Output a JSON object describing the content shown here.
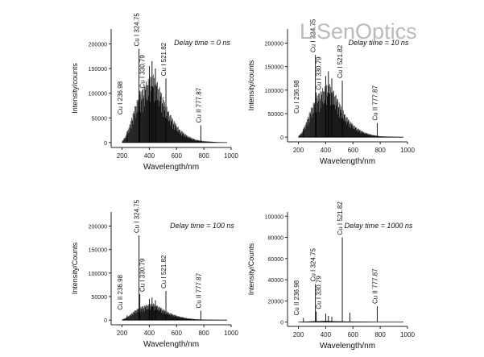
{
  "watermark": {
    "text": "LiSenOptics",
    "color": "#aaaaaa"
  },
  "chart_data": [
    {
      "type": "line",
      "delay_label": "Delay time = 0 ns",
      "xlabel": "Wavelength/nm",
      "ylabel": "Intensity/counts",
      "xlim": [
        120,
        1000
      ],
      "ylim": [
        -10000,
        230000
      ],
      "xticks": [
        200,
        400,
        600,
        800,
        1000
      ],
      "xtick_labels": [
        "200",
        "400",
        "600",
        "800",
        "1000"
      ],
      "yticks": [
        0,
        50000,
        100000,
        150000,
        200000
      ],
      "ytick_labels": [
        "0",
        "50000",
        "100000",
        "150000",
        "200000"
      ],
      "envelope": [
        [
          200,
          2000
        ],
        [
          230,
          15000
        ],
        [
          260,
          40000
        ],
        [
          290,
          70000
        ],
        [
          320,
          95000
        ],
        [
          350,
          110000
        ],
        [
          380,
          125000
        ],
        [
          410,
          135000
        ],
        [
          430,
          140000
        ],
        [
          450,
          130000
        ],
        [
          480,
          110000
        ],
        [
          510,
          85000
        ],
        [
          540,
          65000
        ],
        [
          580,
          45000
        ],
        [
          620,
          28000
        ],
        [
          680,
          14000
        ],
        [
          740,
          6000
        ],
        [
          800,
          3000
        ],
        [
          900,
          1000
        ],
        [
          970,
          500
        ]
      ],
      "peaks": [
        [
          236.98,
          22000
        ],
        [
          324.75,
          190000
        ],
        [
          330.79,
          105000
        ],
        [
          400,
          155000
        ],
        [
          420,
          165000
        ],
        [
          445,
          150000
        ],
        [
          521.82,
          130000
        ],
        [
          777.87,
          35000
        ]
      ],
      "annotations": [
        {
          "text": "Cu I 236.98",
          "x": 236.98
        },
        {
          "text": "Cu I 324.75",
          "x": 324.75
        },
        {
          "text": "Cu I 330.79",
          "x": 330.79
        },
        {
          "text": "Cu I 521.82",
          "x": 521.82
        },
        {
          "text": "Cu II 777.87",
          "x": 777.87
        }
      ]
    },
    {
      "type": "line",
      "delay_label": "Delay time = 10 ns",
      "xlabel": "Wavelength/nm",
      "ylabel": "Intensity/counts",
      "xlim": [
        120,
        1000
      ],
      "ylim": [
        -10000,
        230000
      ],
      "xticks": [
        200,
        400,
        600,
        800,
        1000
      ],
      "xtick_labels": [
        "200",
        "400",
        "600",
        "800",
        "1000"
      ],
      "yticks": [
        0,
        50000,
        100000,
        150000,
        200000
      ],
      "ytick_labels": [
        "0",
        "50000",
        "100000",
        "150000",
        "200000"
      ],
      "envelope": [
        [
          200,
          2000
        ],
        [
          230,
          12000
        ],
        [
          260,
          35000
        ],
        [
          290,
          60000
        ],
        [
          320,
          80000
        ],
        [
          350,
          95000
        ],
        [
          380,
          105000
        ],
        [
          410,
          112000
        ],
        [
          430,
          115000
        ],
        [
          450,
          105000
        ],
        [
          480,
          88000
        ],
        [
          510,
          68000
        ],
        [
          540,
          50000
        ],
        [
          580,
          34000
        ],
        [
          620,
          22000
        ],
        [
          680,
          11000
        ],
        [
          740,
          5000
        ],
        [
          800,
          2000
        ],
        [
          900,
          800
        ],
        [
          970,
          300
        ]
      ],
      "peaks": [
        [
          236.98,
          18000
        ],
        [
          324.75,
          175000
        ],
        [
          330.79,
          95000
        ],
        [
          400,
          130000
        ],
        [
          420,
          140000
        ],
        [
          445,
          125000
        ],
        [
          521.82,
          120000
        ],
        [
          777.87,
          30000
        ]
      ],
      "annotations": [
        {
          "text": "Cu I 236.98",
          "x": 236.98
        },
        {
          "text": "Cu I 324.75",
          "x": 324.75
        },
        {
          "text": "Cu I 330.79",
          "x": 330.79
        },
        {
          "text": "Cu I 521.82",
          "x": 521.82
        },
        {
          "text": "Cu II 777.87",
          "x": 777.87
        }
      ]
    },
    {
      "type": "line",
      "delay_label": "Delay time = 100 ns",
      "xlabel": "Wavelength/nm",
      "ylabel": "Intensity/Counts",
      "xlim": [
        120,
        1000
      ],
      "ylim": [
        -10000,
        230000
      ],
      "xticks": [
        200,
        400,
        600,
        800,
        1000
      ],
      "xtick_labels": [
        "200",
        "400",
        "600",
        "800",
        "1000"
      ],
      "yticks": [
        0,
        50000,
        100000,
        150000,
        200000
      ],
      "ytick_labels": [
        "0",
        "50000",
        "100000",
        "150000",
        "200000"
      ],
      "envelope": [
        [
          200,
          1000
        ],
        [
          230,
          5000
        ],
        [
          260,
          12000
        ],
        [
          290,
          20000
        ],
        [
          320,
          26000
        ],
        [
          350,
          30000
        ],
        [
          380,
          33000
        ],
        [
          410,
          35000
        ],
        [
          430,
          36000
        ],
        [
          450,
          33000
        ],
        [
          480,
          28000
        ],
        [
          510,
          22000
        ],
        [
          540,
          17000
        ],
        [
          580,
          12000
        ],
        [
          620,
          8000
        ],
        [
          680,
          4000
        ],
        [
          740,
          2000
        ],
        [
          800,
          1000
        ],
        [
          900,
          500
        ],
        [
          970,
          200
        ]
      ],
      "peaks": [
        [
          236.98,
          10000
        ],
        [
          324.75,
          180000
        ],
        [
          330.79,
          55000
        ],
        [
          400,
          45000
        ],
        [
          420,
          48000
        ],
        [
          445,
          42000
        ],
        [
          521.82,
          62000
        ],
        [
          777.87,
          20000
        ]
      ],
      "annotations": [
        {
          "text": "Cu II 236.98",
          "x": 236.98
        },
        {
          "text": "Cu I 324.75",
          "x": 324.75
        },
        {
          "text": "Cu I 330.79",
          "x": 330.79
        },
        {
          "text": "Cu I 521.82",
          "x": 521.82
        },
        {
          "text": "Cu II 777.87",
          "x": 777.87
        }
      ]
    },
    {
      "type": "line",
      "delay_label": "Delay time = 1000 ns",
      "xlabel": "Wavelength/nm",
      "ylabel": "Intensity/Counts",
      "xlim": [
        120,
        1000
      ],
      "ylim": [
        -4000,
        104000
      ],
      "xticks": [
        200,
        400,
        600,
        800,
        1000
      ],
      "xtick_labels": [
        "200",
        "400",
        "600",
        "800",
        "1000"
      ],
      "yticks": [
        0,
        20000,
        40000,
        60000,
        80000,
        100000
      ],
      "ytick_labels": [
        "0",
        "20000",
        "40000",
        "60000",
        "80000",
        "100000"
      ],
      "envelope": [
        [
          200,
          200
        ],
        [
          230,
          400
        ],
        [
          260,
          600
        ],
        [
          290,
          800
        ],
        [
          320,
          1000
        ],
        [
          350,
          1100
        ],
        [
          380,
          1200
        ],
        [
          410,
          1200
        ],
        [
          430,
          1100
        ],
        [
          450,
          1000
        ],
        [
          480,
          900
        ],
        [
          510,
          800
        ],
        [
          540,
          700
        ],
        [
          580,
          600
        ],
        [
          620,
          500
        ],
        [
          680,
          400
        ],
        [
          740,
          300
        ],
        [
          800,
          200
        ],
        [
          900,
          100
        ],
        [
          970,
          50
        ]
      ],
      "peaks": [
        [
          236.98,
          4000
        ],
        [
          324.75,
          36000
        ],
        [
          330.79,
          10000
        ],
        [
          400,
          8000
        ],
        [
          420,
          6000
        ],
        [
          445,
          5000
        ],
        [
          521.82,
          80000
        ],
        [
          578.2,
          9000
        ],
        [
          777.87,
          15000
        ]
      ],
      "annotations": [
        {
          "text": "Cu II 236.98",
          "x": 236.98
        },
        {
          "text": "Cu I 324.75",
          "x": 324.75
        },
        {
          "text": "Cu I 330.79",
          "x": 330.79
        },
        {
          "text": "Cu I 521.82",
          "x": 521.82
        },
        {
          "text": "Cu II 777.87",
          "x": 777.87
        }
      ]
    }
  ]
}
